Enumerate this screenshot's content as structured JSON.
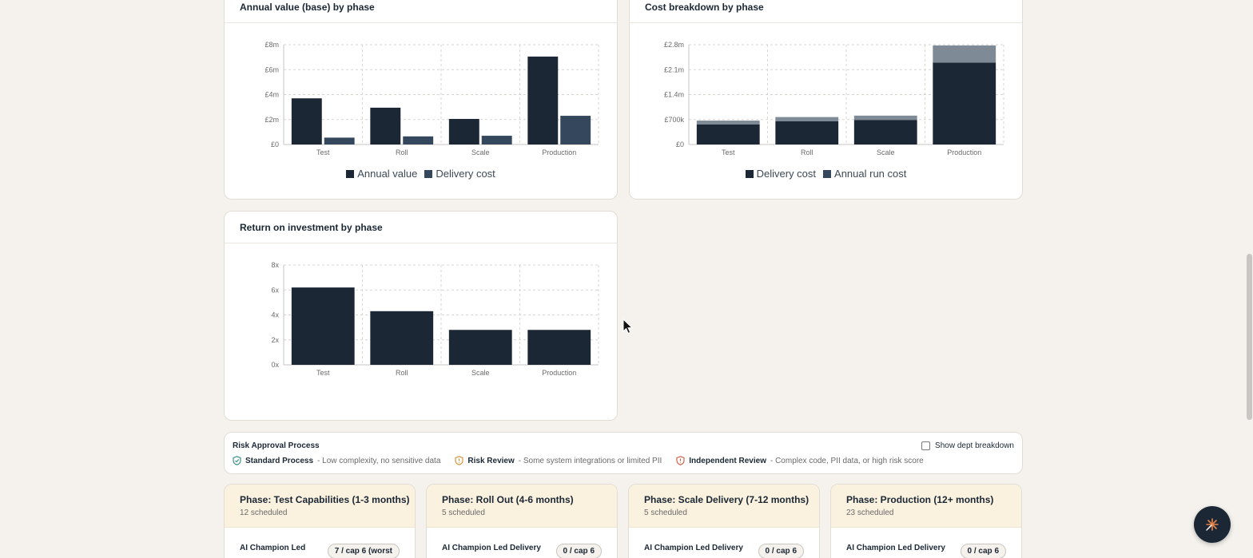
{
  "colors": {
    "dark_navy": "#1b2735",
    "slate_blue": "#34475d",
    "gray_blue": "#7e8a96",
    "phase_header_bg": "#faf1de",
    "page_bg": "#f5f2ed",
    "risk_standard": "#2f8a7a",
    "risk_review": "#d98a2b",
    "risk_independent": "#c9593b"
  },
  "charts": {
    "annual": {
      "title": "Annual value (base) by phase",
      "legend": [
        "Annual value",
        "Delivery cost"
      ]
    },
    "cost": {
      "title": "Cost breakdown by phase",
      "legend": [
        "Delivery cost",
        "Annual run cost"
      ]
    },
    "roi": {
      "title": "Return on investment by phase"
    }
  },
  "chart_data": [
    {
      "type": "bar",
      "title": "Annual value (base) by phase",
      "categories": [
        "Test",
        "Roll",
        "Scale",
        "Production"
      ],
      "series": [
        {
          "name": "Annual value",
          "values": [
            3.7,
            2.95,
            2.05,
            7.05
          ]
        },
        {
          "name": "Delivery cost",
          "values": [
            0.55,
            0.65,
            0.7,
            2.3
          ]
        }
      ],
      "y_ticks": [
        "£0",
        "£2m",
        "£4m",
        "£6m",
        "£8m"
      ],
      "ylim": [
        0,
        8
      ],
      "grid": true,
      "legend_placement": "bottom"
    },
    {
      "type": "bar",
      "stacked": true,
      "title": "Cost breakdown by phase",
      "categories": [
        "Test",
        "Roll",
        "Scale",
        "Production"
      ],
      "series": [
        {
          "name": "Delivery cost",
          "values": [
            0.56,
            0.65,
            0.69,
            2.3
          ]
        },
        {
          "name": "Annual run cost",
          "values": [
            0.11,
            0.12,
            0.12,
            0.48
          ]
        }
      ],
      "y_ticks": [
        "£0",
        "£700k",
        "£1.4m",
        "£2.1m",
        "£2.8m"
      ],
      "ylim": [
        0,
        2.8
      ],
      "grid": true,
      "legend_placement": "bottom"
    },
    {
      "type": "bar",
      "title": "Return on investment by phase",
      "categories": [
        "Test",
        "Roll",
        "Scale",
        "Production"
      ],
      "values": [
        6.2,
        4.3,
        2.8,
        2.8
      ],
      "y_ticks": [
        "0x",
        "2x",
        "4x",
        "6x",
        "8x"
      ],
      "ylim": [
        0,
        8
      ],
      "grid": true
    }
  ],
  "risk": {
    "title": "Risk Approval Process",
    "toggle_label": "Show dept breakdown",
    "items": [
      {
        "name": "Standard Process",
        "desc": "- Low complexity, no sensitive data"
      },
      {
        "name": "Risk Review",
        "desc": "- Some system integrations or limited PII"
      },
      {
        "name": "Independent Review",
        "desc": "- Complex code, PII data, or high risk score"
      }
    ]
  },
  "phases": [
    {
      "title": "Phase: Test Capabilities (1-3 months)",
      "count": "12 scheduled",
      "row_label": "AI Champion Led",
      "cap": "7 / cap 6 (worst"
    },
    {
      "title": "Phase: Roll Out (4-6 months)",
      "count": "5 scheduled",
      "row_label": "AI Champion Led Delivery",
      "cap": "0 / cap 6"
    },
    {
      "title": "Phase: Scale Delivery (7-12 months)",
      "count": "5 scheduled",
      "row_label": "AI Champion Led Delivery",
      "cap": "0 / cap 6"
    },
    {
      "title": "Phase: Production (12+ months)",
      "count": "23 scheduled",
      "row_label": "AI Champion Led Delivery",
      "cap": "0 / cap 6"
    }
  ],
  "icons": {
    "fab": "sparkle-icon",
    "standard": "shield-check-icon",
    "review": "shield-alert-icon",
    "independent": "shield-alert-icon"
  }
}
